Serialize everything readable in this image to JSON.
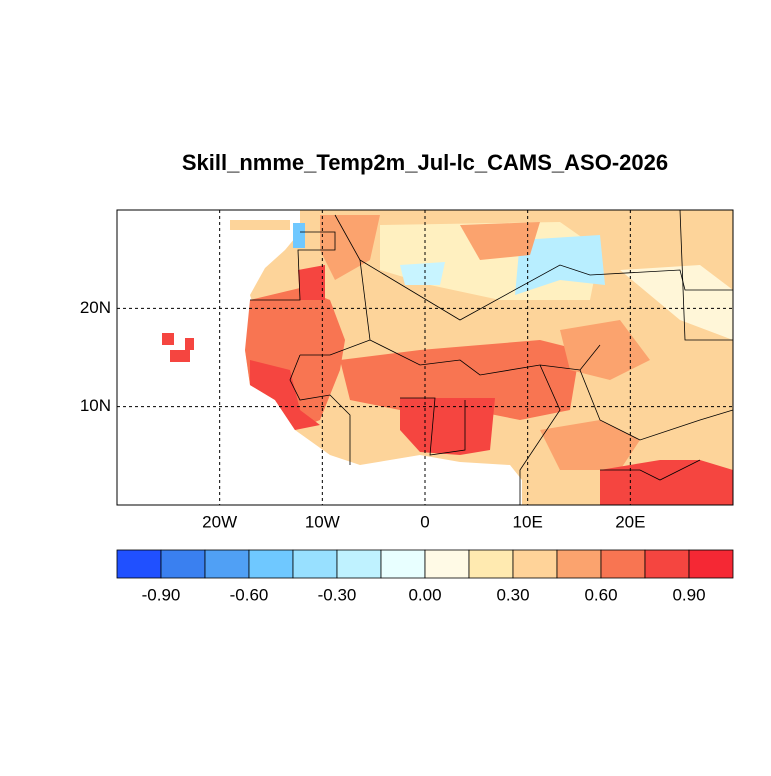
{
  "chart_data": {
    "type": "map",
    "title": "Skill_nmme_Temp2m_Jul-lc_CAMS_ASO-2026",
    "xlim": [
      -30,
      30
    ],
    "ylim": [
      0,
      30
    ],
    "xticks": [
      {
        "value": -20,
        "label": "20W"
      },
      {
        "value": -10,
        "label": "10W"
      },
      0,
      {
        "value": 10,
        "label": "10E"
      },
      {
        "value": 20,
        "label": "20E"
      }
    ],
    "yticks": [
      {
        "value": 10,
        "label": "10N"
      },
      {
        "value": 20,
        "label": "20N"
      }
    ],
    "grid": true,
    "colorbar": {
      "lim": [
        -1.05,
        1.05
      ],
      "colors": [
        "#2050ff",
        "#3a80f0",
        "#50a0f5",
        "#6fc8ff",
        "#98e0ff",
        "#bff2ff",
        "#e8ffff",
        "#fffae6",
        "#ffeab0",
        "#ffd399",
        "#fba36e",
        "#f87552",
        "#f54540",
        "#f52834"
      ],
      "ticks": [
        {
          "value": -0.9,
          "label": "-0.90"
        },
        {
          "value": -0.6,
          "label": "-0.60"
        },
        {
          "value": -0.3,
          "label": "-0.30"
        },
        {
          "value": 0,
          "label": "0.00"
        },
        {
          "value": 0.3,
          "label": "0.30"
        },
        {
          "value": 0.6,
          "label": "0.60"
        },
        {
          "value": 0.9,
          "label": "0.90"
        }
      ]
    }
  }
}
